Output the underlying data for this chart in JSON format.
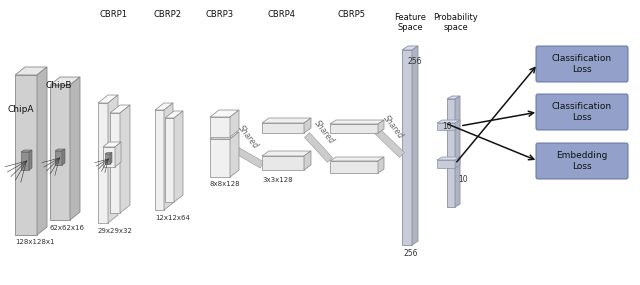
{
  "fig_width": 6.4,
  "fig_height": 2.85,
  "dpi": 100,
  "bg_color": "#ffffff",
  "panel_face": "#d0d0d0",
  "panel_top": "#e8e8e8",
  "panel_right": "#b8b8b8",
  "panel_edge": "#888888",
  "white_face": "#f0f0f0",
  "white_top": "#f8f8f8",
  "white_right": "#d8d8d8",
  "flat_face": "#e8e8e8",
  "flat_top": "#f0f0f0",
  "flat_right": "#d0d0d0",
  "feat_face": "#c8ccd8",
  "feat_top": "#d8dce8",
  "feat_right": "#b0b4c0",
  "prob_face": "#c8ccd8",
  "prob_top": "#d8dce8",
  "prob_right": "#b0b4c0",
  "loss_face": "#8090c0",
  "loss_edge": "#6070a0",
  "arrow_color": "#111111",
  "text_color": "#111111",
  "shared_color": "#666666",
  "loss_labels": [
    "Classification\nLoss",
    "Classification\nLoss",
    "Embedding\nLoss"
  ],
  "top_labels": [
    "CBRP1",
    "CBRP2",
    "CBRP3",
    "CBRP4",
    "CBRP5",
    "Feature\nSpace",
    "Probability\nspace"
  ]
}
